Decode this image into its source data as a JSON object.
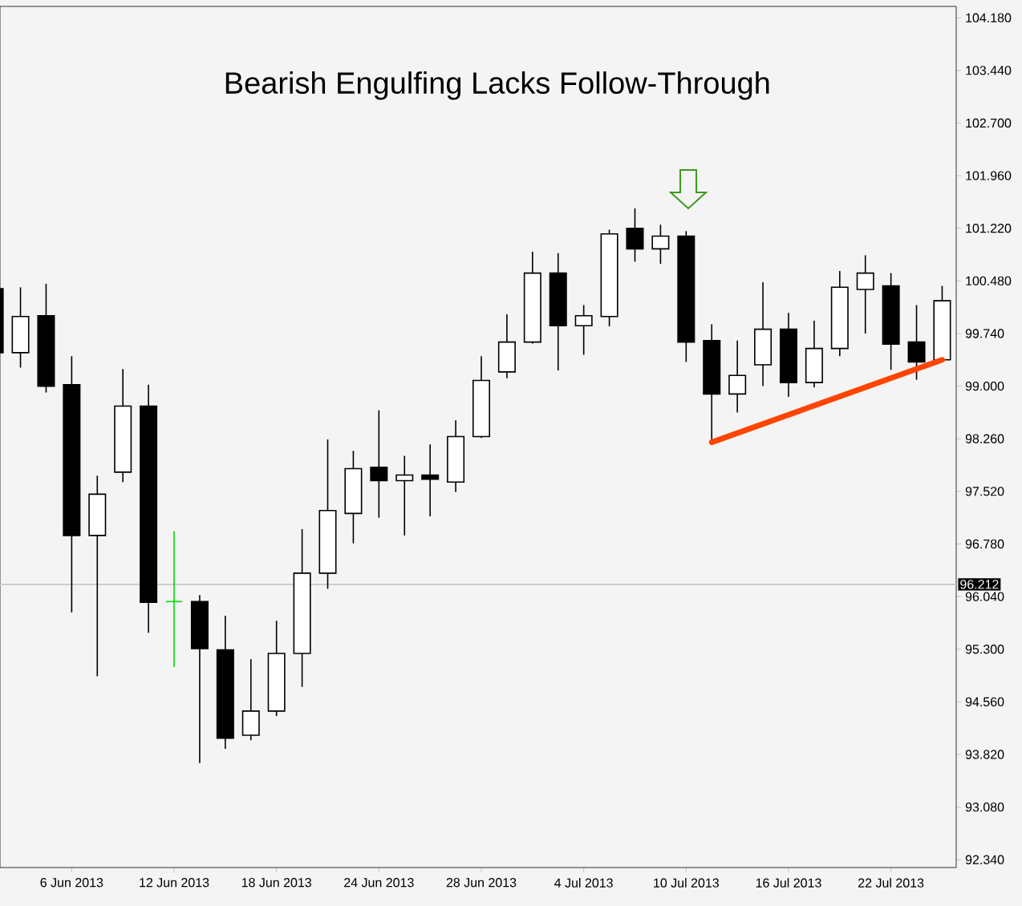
{
  "chart_data": {
    "type": "candlestick",
    "title": "Bearish Engulfing Lacks Follow-Through",
    "categories": [
      null,
      null,
      null,
      "6 Jun 2013",
      null,
      null,
      null,
      "12 Jun 2013",
      null,
      null,
      null,
      "18 Jun 2013",
      null,
      null,
      null,
      "24 Jun 2013",
      null,
      null,
      null,
      "28 Jun 2013",
      null,
      null,
      null,
      "4 Jul 2013",
      null,
      null,
      null,
      "10 Jul 2013",
      null,
      null,
      null,
      "16 Jul 2013",
      null,
      null,
      null,
      "22 Jul 2013",
      null,
      null
    ],
    "ohlc": [
      [
        100.37,
        100.41,
        99.45,
        99.47
      ],
      [
        99.47,
        100.39,
        99.26,
        99.98
      ],
      [
        99.99,
        100.44,
        98.91,
        99.0
      ],
      [
        99.02,
        99.42,
        95.82,
        96.9
      ],
      [
        96.9,
        97.74,
        94.92,
        97.48
      ],
      [
        97.79,
        99.24,
        97.65,
        98.72
      ],
      [
        98.72,
        99.02,
        95.53,
        95.96
      ],
      [
        95.97,
        96.96,
        95.05,
        95.97
      ],
      [
        95.97,
        96.06,
        93.7,
        95.31
      ],
      [
        95.29,
        95.77,
        93.9,
        94.05
      ],
      [
        94.09,
        95.16,
        94.02,
        94.43
      ],
      [
        94.43,
        95.7,
        94.36,
        95.24
      ],
      [
        95.24,
        96.99,
        94.77,
        96.37
      ],
      [
        96.37,
        98.25,
        96.15,
        97.25
      ],
      [
        97.21,
        98.09,
        96.79,
        97.84
      ],
      [
        97.86,
        98.66,
        97.15,
        97.67
      ],
      [
        97.67,
        98.02,
        96.9,
        97.75
      ],
      [
        97.75,
        98.18,
        97.17,
        97.69
      ],
      [
        97.65,
        98.52,
        97.51,
        98.29
      ],
      [
        98.29,
        99.42,
        98.27,
        99.08
      ],
      [
        99.2,
        100.01,
        99.11,
        99.62
      ],
      [
        99.62,
        100.89,
        99.6,
        100.59
      ],
      [
        100.59,
        100.87,
        99.22,
        99.85
      ],
      [
        99.85,
        100.14,
        99.44,
        99.99
      ],
      [
        99.98,
        101.2,
        99.84,
        101.14
      ],
      [
        101.22,
        101.5,
        100.75,
        100.93
      ],
      [
        100.93,
        101.27,
        100.72,
        101.11
      ],
      [
        101.11,
        101.18,
        99.34,
        99.62
      ],
      [
        99.64,
        99.87,
        98.21,
        98.89
      ],
      [
        98.89,
        99.64,
        98.63,
        99.15
      ],
      [
        99.3,
        100.46,
        99.0,
        99.8
      ],
      [
        99.8,
        100.03,
        98.85,
        99.05
      ],
      [
        99.05,
        99.92,
        98.98,
        99.53
      ],
      [
        99.53,
        100.62,
        99.42,
        100.39
      ],
      [
        100.36,
        100.84,
        99.74,
        100.59
      ],
      [
        100.41,
        100.59,
        99.23,
        99.59
      ],
      [
        99.62,
        100.14,
        99.09,
        99.34
      ],
      [
        99.37,
        100.41,
        99.37,
        100.2
      ]
    ],
    "series": [
      {
        "type": "line",
        "color": "#ff4500",
        "values": [
          null,
          null,
          null,
          null,
          null,
          null,
          null,
          null,
          null,
          null,
          null,
          null,
          null,
          null,
          null,
          null,
          null,
          null,
          null,
          null,
          null,
          null,
          null,
          null,
          null,
          null,
          null,
          null,
          98.21,
          null,
          null,
          null,
          null,
          null,
          null,
          null,
          null,
          99.37
        ]
      }
    ],
    "ylim": [
      92.23,
      104.34
    ],
    "yticks": [
      {
        "value": 92.34,
        "label": "92.340"
      },
      {
        "value": 93.08,
        "label": "93.080"
      },
      {
        "value": 93.82,
        "label": "93.820"
      },
      {
        "value": 94.56,
        "label": "94.560"
      },
      {
        "value": 95.3,
        "label": "95.300"
      },
      {
        "value": 96.04,
        "label": "96.040"
      },
      {
        "value": 96.78,
        "label": "96.780"
      },
      {
        "value": 97.52,
        "label": "97.520"
      },
      {
        "value": 98.26,
        "label": "98.260"
      },
      {
        "value": 99.0,
        "label": "99.000"
      },
      {
        "value": 99.74,
        "label": "99.740"
      },
      {
        "value": 100.48,
        "label": "100.480"
      },
      {
        "value": 101.22,
        "label": "101.220"
      },
      {
        "value": 101.96,
        "label": "101.960"
      },
      {
        "value": 102.7,
        "label": "102.700"
      },
      {
        "value": 103.44,
        "label": "103.440"
      },
      {
        "value": 104.18,
        "label": "104.180"
      }
    ],
    "ref_lines": [
      {
        "axis": "y",
        "value": 96.212,
        "label": "96.212",
        "color": "#c8c8c8"
      }
    ]
  }
}
